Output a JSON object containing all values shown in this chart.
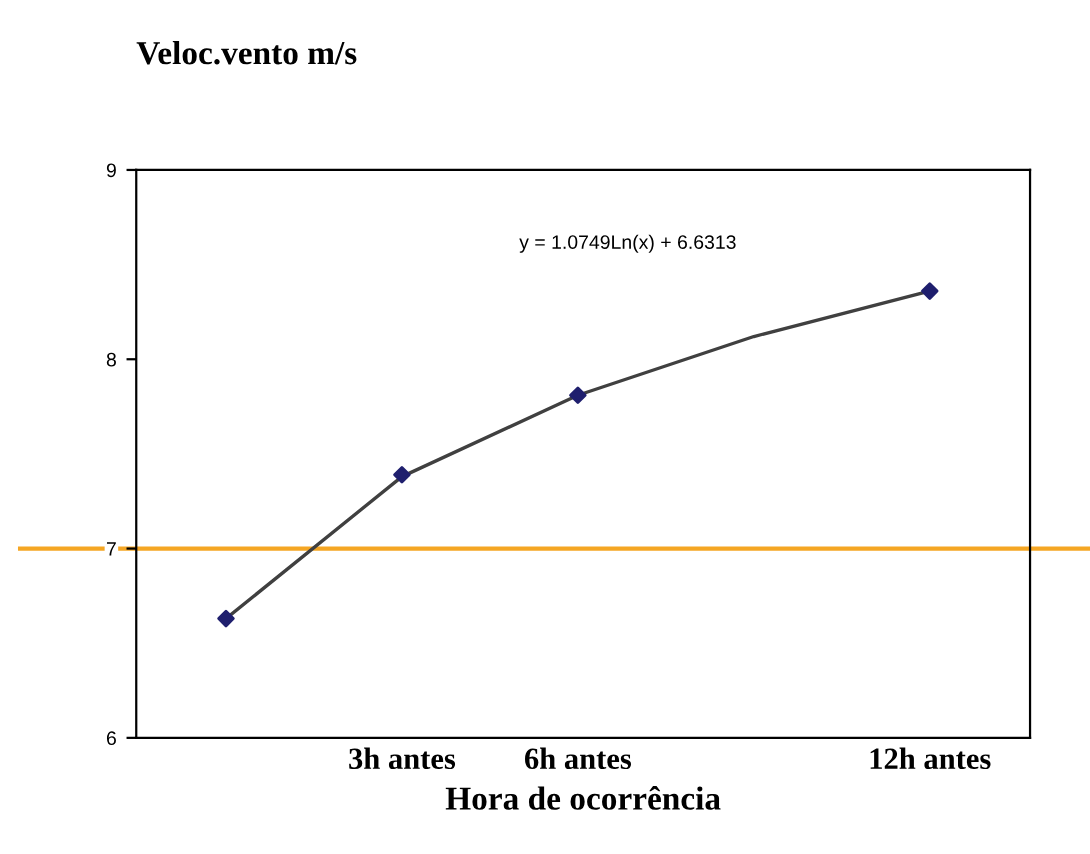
{
  "chart_data": {
    "type": "scatter",
    "ylabel": "Veloc.vento m/s",
    "xlabel": "Hora de ocorrência",
    "categories": [
      null,
      "3h antes",
      "6h antes",
      null,
      "12h antes"
    ],
    "series": [
      {
        "color": "#1f1f6e",
        "values": [
          6.63,
          7.39,
          7.81,
          null,
          8.36
        ],
        "marker": "diamond"
      },
      {
        "type": "line",
        "color": "#404040",
        "values": [
          6.63,
          7.38,
          7.81,
          8.12,
          8.36
        ],
        "marker": "none"
      }
    ],
    "ylim": [
      6,
      9
    ],
    "yticks": [
      6,
      7,
      8,
      9
    ],
    "ref_lines": [
      {
        "axis": "y",
        "value": 7,
        "color": "#f5a623"
      }
    ],
    "annotations": [
      "y = 1.0749Ln(x) + 6.6313"
    ],
    "grid": false
  }
}
